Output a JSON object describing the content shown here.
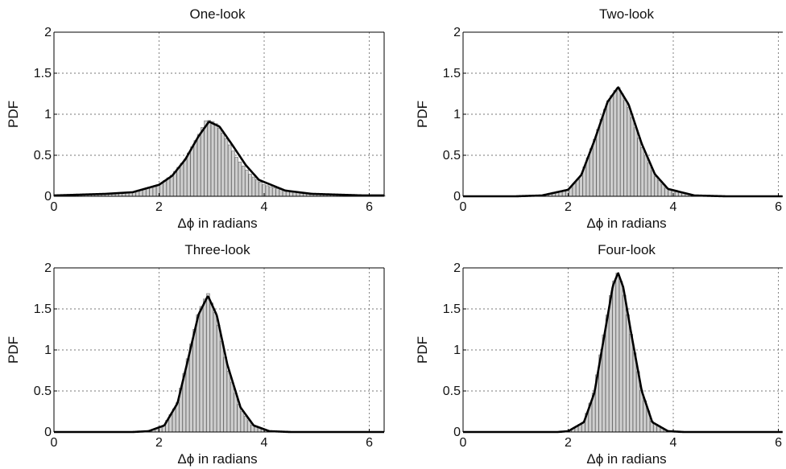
{
  "chart_data": [
    {
      "type": "bar",
      "title": "One-look",
      "xlabel": "Δϕ in radians",
      "ylabel": "PDF",
      "xlim": [
        0,
        6.2832
      ],
      "ylim": [
        0,
        2
      ],
      "xticks": [
        "0",
        "2",
        "4",
        "6"
      ],
      "yticks": [
        "0",
        "0.5",
        "1",
        "1.5",
        "2"
      ],
      "grid": true,
      "peak_x": 2.95,
      "peak_pdf": 0.91,
      "series": [
        {
          "kind": "histogram",
          "x": [
            0.0,
            0.5,
            1.0,
            1.5,
            2.0,
            2.25,
            2.5,
            2.75,
            2.9,
            3.0,
            3.1,
            3.25,
            3.5,
            3.75,
            4.0,
            4.5,
            5.0,
            5.5,
            6.0,
            6.28
          ],
          "values": [
            0.01,
            0.02,
            0.03,
            0.05,
            0.14,
            0.26,
            0.45,
            0.74,
            0.93,
            0.92,
            0.88,
            0.74,
            0.45,
            0.26,
            0.14,
            0.05,
            0.03,
            0.02,
            0.01,
            0.01
          ]
        },
        {
          "kind": "fit-curve",
          "x": [
            0.0,
            0.5,
            1.0,
            1.5,
            2.0,
            2.25,
            2.5,
            2.75,
            2.95,
            3.15,
            3.4,
            3.65,
            3.9,
            4.4,
            4.9,
            5.4,
            5.9,
            6.28
          ],
          "values": [
            0.01,
            0.02,
            0.03,
            0.05,
            0.14,
            0.25,
            0.45,
            0.73,
            0.91,
            0.85,
            0.62,
            0.38,
            0.2,
            0.07,
            0.03,
            0.02,
            0.01,
            0.01
          ]
        }
      ]
    },
    {
      "type": "bar",
      "title": "Two-look",
      "xlabel": "Δϕ in radians",
      "ylabel": "PDF",
      "xlim": [
        0,
        6.2832
      ],
      "ylim": [
        0,
        2
      ],
      "xticks": [
        "0",
        "2",
        "4",
        "6"
      ],
      "yticks": [
        "0",
        "0.5",
        "1",
        "1.5",
        "2"
      ],
      "grid": true,
      "peak_x": 2.95,
      "peak_pdf": 1.33,
      "series": [
        {
          "kind": "histogram",
          "x": [
            1.5,
            2.0,
            2.25,
            2.5,
            2.75,
            2.95,
            3.15,
            3.4,
            3.65,
            3.9,
            4.4
          ],
          "values": [
            0.01,
            0.07,
            0.25,
            0.68,
            1.15,
            1.34,
            1.1,
            0.62,
            0.26,
            0.08,
            0.01
          ]
        },
        {
          "kind": "fit-curve",
          "x": [
            0.0,
            1.0,
            1.5,
            2.0,
            2.25,
            2.5,
            2.75,
            2.95,
            3.15,
            3.4,
            3.65,
            3.9,
            4.4,
            5.0,
            6.28
          ],
          "values": [
            0.0,
            0.0,
            0.01,
            0.08,
            0.26,
            0.68,
            1.15,
            1.33,
            1.12,
            0.64,
            0.27,
            0.09,
            0.01,
            0.0,
            0.0
          ]
        }
      ]
    },
    {
      "type": "bar",
      "title": "Three-look",
      "xlabel": "Δϕ in radians",
      "ylabel": "PDF",
      "xlim": [
        0,
        6.2832
      ],
      "ylim": [
        0,
        2
      ],
      "xticks": [
        "0",
        "2",
        "4",
        "6"
      ],
      "yticks": [
        "0",
        "0.5",
        "1",
        "1.5",
        "2"
      ],
      "grid": true,
      "peak_x": 2.93,
      "peak_pdf": 1.66,
      "series": [
        {
          "kind": "histogram",
          "x": [
            1.8,
            2.1,
            2.35,
            2.55,
            2.75,
            2.93,
            3.1,
            3.3,
            3.55,
            3.8,
            4.1
          ],
          "values": [
            0.01,
            0.08,
            0.35,
            0.9,
            1.45,
            1.7,
            1.4,
            0.8,
            0.28,
            0.07,
            0.01
          ]
        },
        {
          "kind": "fit-curve",
          "x": [
            0.0,
            1.5,
            1.8,
            2.1,
            2.35,
            2.55,
            2.75,
            2.93,
            3.1,
            3.3,
            3.55,
            3.8,
            4.1,
            4.5,
            6.28
          ],
          "values": [
            0.0,
            0.0,
            0.01,
            0.08,
            0.35,
            0.88,
            1.43,
            1.66,
            1.42,
            0.82,
            0.3,
            0.08,
            0.01,
            0.0,
            0.0
          ]
        }
      ]
    },
    {
      "type": "bar",
      "title": "Four-look",
      "xlabel": "Δϕ in radians",
      "ylabel": "PDF",
      "xlim": [
        0,
        6.2832
      ],
      "ylim": [
        0,
        2
      ],
      "xticks": [
        "0",
        "2",
        "4",
        "6"
      ],
      "yticks": [
        "0",
        "0.5",
        "1",
        "1.5",
        "2"
      ],
      "grid": true,
      "peak_x": 2.95,
      "peak_pdf": 1.94,
      "series": [
        {
          "kind": "histogram",
          "x": [
            2.0,
            2.3,
            2.5,
            2.7,
            2.85,
            2.95,
            3.05,
            3.2,
            3.4,
            3.6,
            3.9
          ],
          "values": [
            0.01,
            0.12,
            0.5,
            1.25,
            1.8,
            1.95,
            1.75,
            1.2,
            0.5,
            0.12,
            0.01
          ]
        },
        {
          "kind": "fit-curve",
          "x": [
            0.0,
            1.8,
            2.0,
            2.3,
            2.5,
            2.7,
            2.85,
            2.95,
            3.05,
            3.2,
            3.4,
            3.6,
            3.9,
            4.2,
            6.28
          ],
          "values": [
            0.0,
            0.0,
            0.01,
            0.12,
            0.48,
            1.22,
            1.78,
            1.94,
            1.76,
            1.2,
            0.5,
            0.12,
            0.01,
            0.0,
            0.0
          ]
        }
      ]
    }
  ]
}
